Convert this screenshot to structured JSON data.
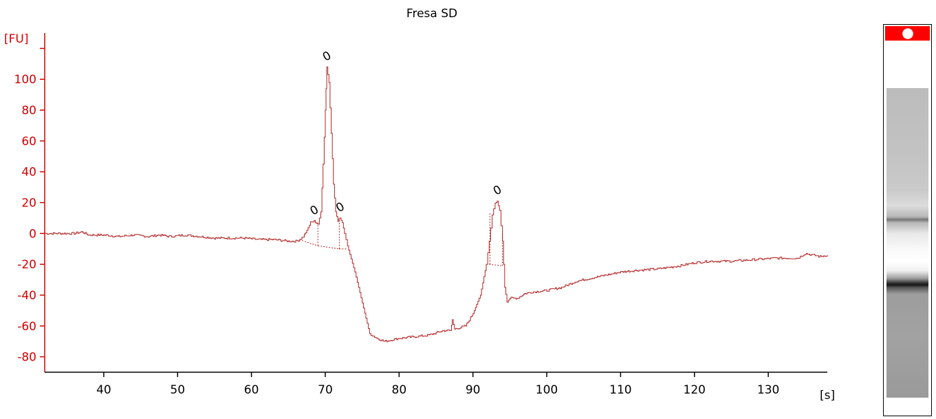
{
  "chart_data": {
    "type": "line",
    "title": "Fresa SD",
    "ylabel": "[FU]",
    "xlabel": "[s]",
    "xlim": [
      32,
      138
    ],
    "ylim": [
      -90,
      130
    ],
    "x_ticks": [
      40,
      50,
      60,
      70,
      80,
      90,
      100,
      110,
      120,
      130
    ],
    "y_ticks": [
      100,
      80,
      60,
      40,
      20,
      0,
      -20,
      -40,
      -60,
      -80
    ],
    "grid": false,
    "line_color": "#b22222",
    "axis_color": "#d40000",
    "series": [
      {
        "x": [
          32,
          34,
          36,
          37,
          38,
          40,
          42,
          44,
          46,
          47.5,
          49,
          51,
          53,
          55,
          57,
          59,
          61,
          63,
          65,
          66,
          66.5,
          67,
          67.5,
          68,
          68.5,
          69,
          69.4,
          69.7,
          70,
          70.2,
          70.5,
          70.8,
          71.1,
          71.4,
          71.7,
          72,
          72.3,
          72.6,
          73,
          74,
          75,
          76,
          77,
          78,
          80,
          82,
          84,
          86,
          87,
          87.2,
          87.5,
          89,
          90,
          91,
          91.8,
          92.2,
          92.6,
          93,
          93.3,
          93.6,
          94,
          94.3,
          94.6,
          95,
          96,
          97,
          98,
          100,
          102,
          104,
          106,
          108,
          110,
          112,
          115,
          118,
          120,
          122,
          125,
          128,
          131,
          134,
          135,
          136,
          137,
          138
        ],
        "y": [
          0,
          0,
          0,
          1,
          -1,
          -1,
          -2,
          -1,
          -2,
          -1,
          -2,
          -1,
          -2,
          -3,
          -3,
          -3,
          -4,
          -4,
          -5,
          -5,
          -4,
          -2,
          2,
          7,
          8,
          6,
          14,
          45,
          80,
          108,
          98,
          65,
          32,
          14,
          8,
          10,
          7,
          0,
          -8,
          -25,
          -45,
          -65,
          -68,
          -70,
          -68,
          -67,
          -66,
          -63,
          -63,
          -56,
          -62,
          -60,
          -52,
          -40,
          -20,
          -5,
          12,
          20,
          21,
          15,
          -5,
          -35,
          -44,
          -42,
          -42,
          -39,
          -38,
          -37,
          -35,
          -31,
          -29,
          -27,
          -25,
          -24,
          -23,
          -21,
          -19,
          -18,
          -18,
          -17,
          -16,
          -16,
          -13,
          -14,
          -15,
          -14
        ]
      }
    ],
    "peaks": [
      {
        "x": 68.5,
        "y": 8,
        "label": "0"
      },
      {
        "x": 70.2,
        "y": 108,
        "label": "0"
      },
      {
        "x": 72.0,
        "y": 10,
        "label": "0"
      },
      {
        "x": 93.3,
        "y": 21,
        "label": "0"
      }
    ],
    "baselines": [
      {
        "from": [
          66.5,
          -4
        ],
        "to": [
          69.0,
          -8
        ]
      },
      {
        "from": [
          69.0,
          -8
        ],
        "to": [
          71.9,
          -10
        ]
      },
      {
        "from": [
          71.9,
          -10
        ],
        "to": [
          73.0,
          -10
        ]
      },
      {
        "from": [
          92.2,
          -20
        ],
        "to": [
          94.0,
          -21
        ]
      }
    ]
  },
  "gel": {
    "marker_color": "#ff0000"
  }
}
